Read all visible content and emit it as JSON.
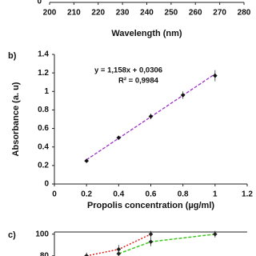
{
  "chart_data": [
    {
      "type": "line",
      "x_label": "Wavelength (nm)",
      "xlim": [
        200,
        280
      ],
      "xticks": [
        200,
        210,
        220,
        230,
        240,
        250,
        260,
        270,
        280
      ],
      "ylim": [
        0,
        1
      ],
      "yticks": [
        0
      ]
    },
    {
      "type": "scatter",
      "panel_label": "b)",
      "x_label": "Propolis concentration (µg/ml)",
      "y_label": "Absorbance (a. u)",
      "xlim": [
        0,
        1.2
      ],
      "xticks": [
        0,
        0.2,
        0.4,
        0.6,
        0.8,
        1,
        1.2
      ],
      "ylim": [
        0,
        1.4
      ],
      "yticks": [
        0,
        0.2,
        0.4,
        0.6,
        0.8,
        1,
        1.2,
        1.4
      ],
      "annotations": [
        "y = 1,158x + 0,0306",
        "R² = 0,9984"
      ],
      "series": [
        {
          "color": "#111111",
          "x": [
            0.2,
            0.4,
            0.6,
            0.8,
            1.0
          ],
          "values": [
            0.25,
            0.5,
            0.73,
            0.96,
            1.17
          ],
          "errors": [
            0.01,
            0.02,
            0.03,
            0.04,
            0.06
          ]
        }
      ],
      "trendline": {
        "color": "#9b30c8",
        "x": [
          0.2,
          1.0
        ],
        "values": [
          0.262,
          1.189
        ]
      }
    },
    {
      "type": "line",
      "panel_label": "c)",
      "xlim": [
        0,
        1.2
      ],
      "ylim": [
        40,
        102
      ],
      "yticks": [
        80,
        100
      ],
      "series": [
        {
          "color": "#e0201c",
          "dash": "2,2",
          "x": [
            0.2,
            0.4,
            0.6
          ],
          "values": [
            80,
            86,
            100
          ],
          "errors": [
            3,
            4,
            3
          ]
        },
        {
          "color": "#40c820",
          "dash": "4,2",
          "x": [
            0.4,
            0.6,
            1.0
          ],
          "values": [
            82,
            93,
            100
          ],
          "errors": [
            3,
            4,
            3
          ]
        }
      ]
    }
  ]
}
